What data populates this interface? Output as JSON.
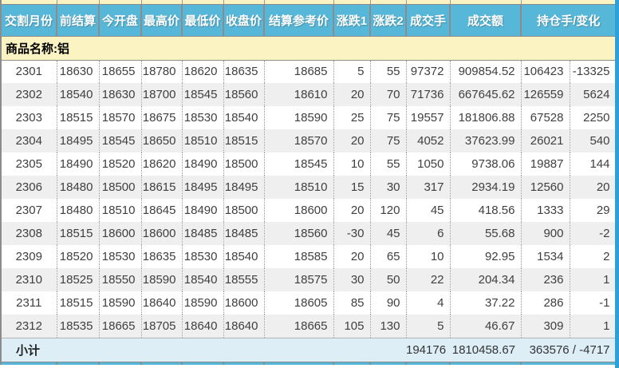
{
  "table": {
    "headers": [
      "交割月份",
      "前结算",
      "今开盘",
      "最高价",
      "最低价",
      "收盘价",
      "结算参考价",
      "涨跌1",
      "涨跌2",
      "成交手",
      "成交额",
      "持仓手/变化"
    ],
    "product_label": "商品名称:铝",
    "rows": [
      [
        "2301",
        "18630",
        "18655",
        "18780",
        "18620",
        "18635",
        "18685",
        "5",
        "55",
        "97372",
        "909854.52",
        "106423",
        "-13325"
      ],
      [
        "2302",
        "18540",
        "18630",
        "18700",
        "18545",
        "18560",
        "18610",
        "20",
        "70",
        "71736",
        "667645.62",
        "126559",
        "5624"
      ],
      [
        "2303",
        "18515",
        "18570",
        "18675",
        "18530",
        "18540",
        "18590",
        "25",
        "75",
        "19557",
        "181806.88",
        "67528",
        "2250"
      ],
      [
        "2304",
        "18495",
        "18545",
        "18650",
        "18510",
        "18515",
        "18570",
        "20",
        "75",
        "4052",
        "37623.99",
        "26021",
        "540"
      ],
      [
        "2305",
        "18490",
        "18520",
        "18620",
        "18490",
        "18500",
        "18545",
        "10",
        "55",
        "1050",
        "9738.06",
        "19887",
        "144"
      ],
      [
        "2306",
        "18480",
        "18500",
        "18615",
        "18495",
        "18495",
        "18510",
        "15",
        "30",
        "317",
        "2934.19",
        "12560",
        "20"
      ],
      [
        "2307",
        "18480",
        "18510",
        "18645",
        "18490",
        "18500",
        "18600",
        "20",
        "120",
        "45",
        "418.56",
        "1333",
        "29"
      ],
      [
        "2308",
        "18515",
        "18600",
        "18600",
        "18485",
        "18485",
        "18560",
        "-30",
        "45",
        "6",
        "55.68",
        "900",
        "-2"
      ],
      [
        "2309",
        "18520",
        "18530",
        "18635",
        "18530",
        "18540",
        "18585",
        "20",
        "65",
        "10",
        "92.95",
        "1534",
        "2"
      ],
      [
        "2310",
        "18525",
        "18550",
        "18590",
        "18540",
        "18555",
        "18575",
        "30",
        "50",
        "22",
        "204.34",
        "236",
        "1"
      ],
      [
        "2311",
        "18515",
        "18590",
        "18640",
        "18590",
        "18600",
        "18605",
        "85",
        "90",
        "4",
        "37.22",
        "286",
        "-1"
      ],
      [
        "2312",
        "18535",
        "18665",
        "18705",
        "18640",
        "18640",
        "18665",
        "105",
        "130",
        "5",
        "46.67",
        "309",
        "1"
      ]
    ],
    "subtotal": {
      "label": "小计",
      "volume": "194176",
      "turnover": "1810458.67",
      "open_interest_change": "363576 / -4717"
    }
  },
  "colors": {
    "header_bg": "#56b7d9",
    "banner_bg": "#fcf3c3",
    "subtotal_bg": "#ddeef7",
    "alt_row_bg": "#efefef",
    "grid_line": "#8c8c8c",
    "dotted_line": "#999999",
    "text": "#3f3f3f",
    "right_strip": "#2e9fd9"
  }
}
